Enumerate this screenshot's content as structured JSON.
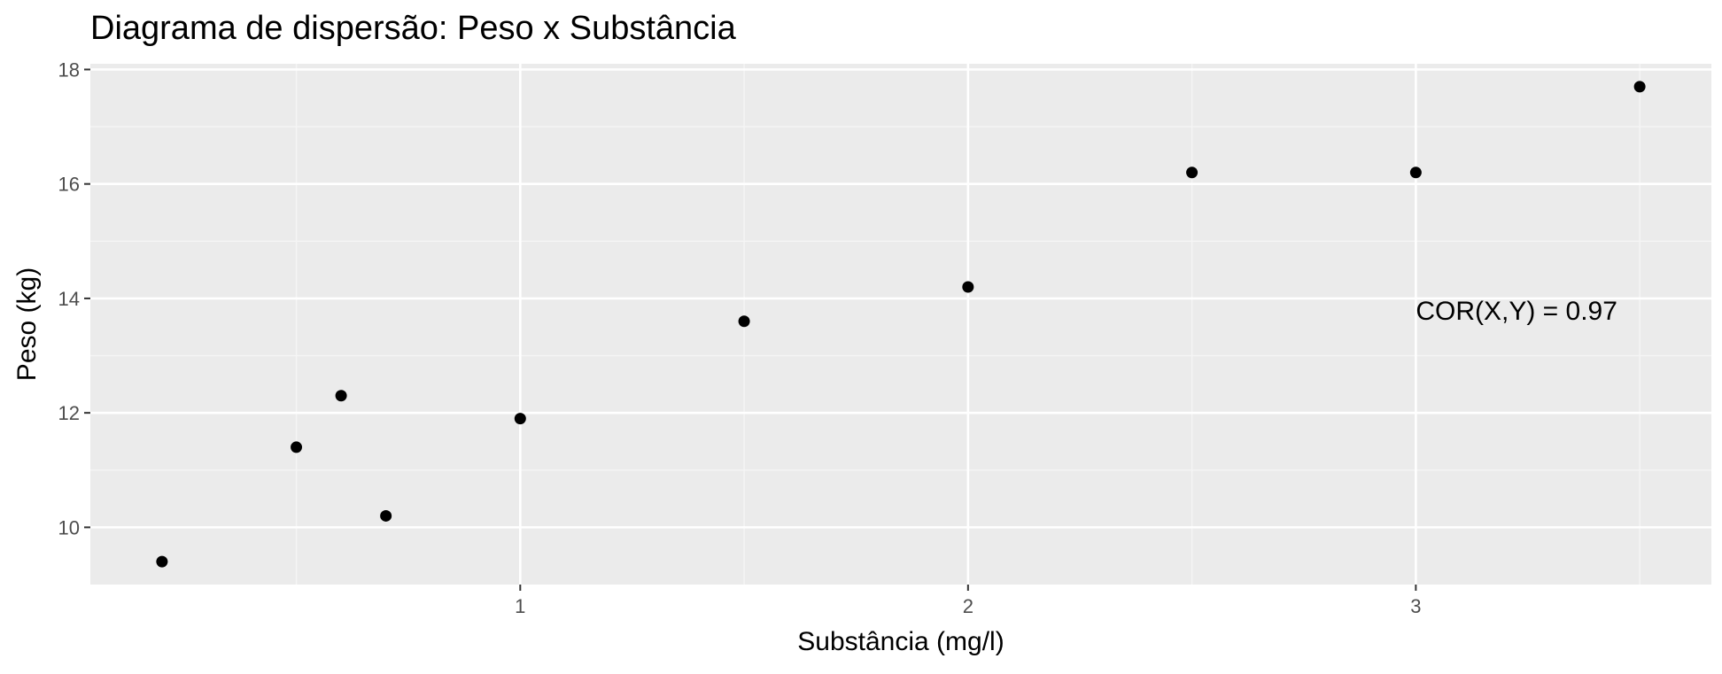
{
  "chart_data": {
    "type": "scatter",
    "title": "Diagrama de dispersão: Peso x Substância",
    "xlabel": "Substância (mg/l)",
    "ylabel": "Peso (kg)",
    "xlim": [
      0.04,
      3.66
    ],
    "ylim": [
      9.0,
      18.1
    ],
    "x_ticks": [
      1,
      2,
      3
    ],
    "y_ticks": [
      10,
      12,
      14,
      16,
      18
    ],
    "x_tick_labels": [
      "1",
      "2",
      "3"
    ],
    "y_tick_labels": [
      "10",
      "12",
      "14",
      "16",
      "18"
    ],
    "grid": true,
    "points": [
      {
        "x": 0.2,
        "y": 9.4
      },
      {
        "x": 0.5,
        "y": 11.4
      },
      {
        "x": 0.6,
        "y": 12.3
      },
      {
        "x": 0.7,
        "y": 10.2
      },
      {
        "x": 1.0,
        "y": 11.9
      },
      {
        "x": 1.5,
        "y": 13.6
      },
      {
        "x": 2.0,
        "y": 14.2
      },
      {
        "x": 2.5,
        "y": 16.2
      },
      {
        "x": 3.0,
        "y": 16.2
      },
      {
        "x": 3.5,
        "y": 17.7
      }
    ],
    "annotation": {
      "text": "COR(X,Y) = 0.97",
      "x": 3.0,
      "y": 13.8
    },
    "colors": {
      "panel": "#ebebeb",
      "grid_major": "#ffffff",
      "grid_minor": "#f5f5f5",
      "point": "#000000",
      "tick_text": "#4d4d4d"
    }
  }
}
